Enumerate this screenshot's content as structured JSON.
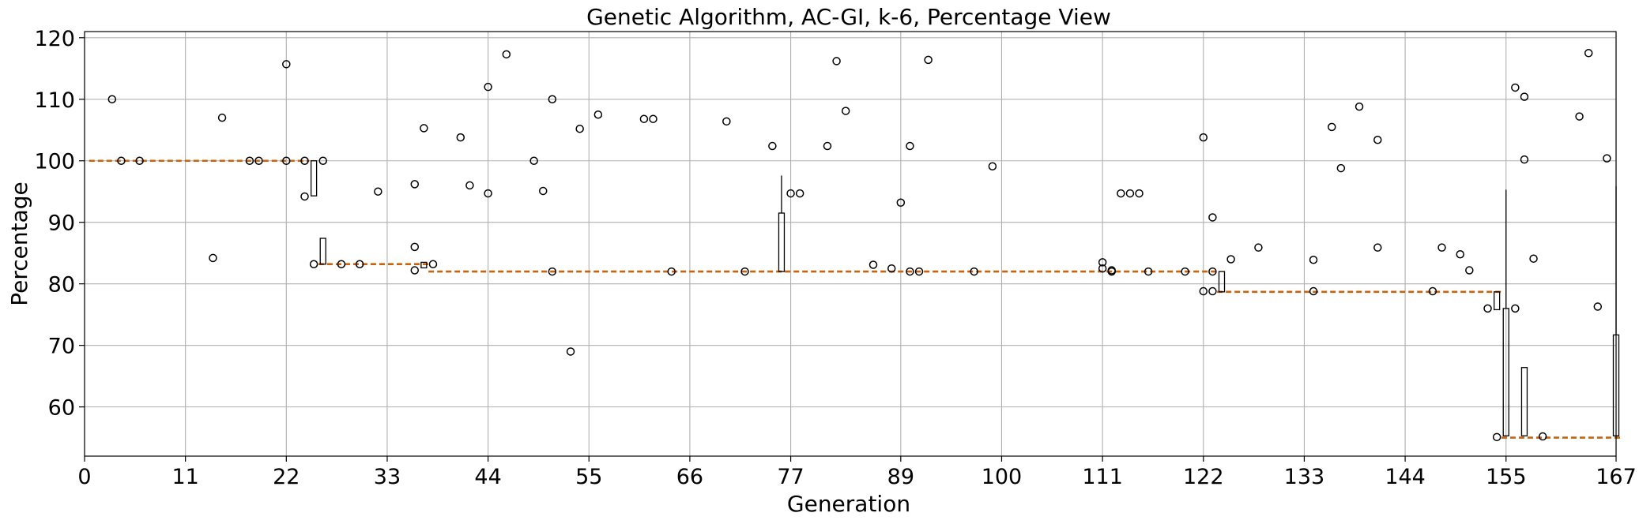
{
  "chart_data": {
    "type": "box",
    "title": "Genetic Algorithm, AC-GI, k-6, Percentage View",
    "xlabel": "Generation",
    "ylabel": "Percentage",
    "xlim": [
      0,
      167
    ],
    "ylim": [
      52,
      121
    ],
    "grid": true,
    "x_ticks": [
      0,
      11,
      22,
      33,
      44,
      55,
      66,
      77,
      89,
      100,
      111,
      122,
      133,
      144,
      155,
      167
    ],
    "y_ticks": [
      60,
      70,
      80,
      90,
      100,
      110,
      120
    ],
    "median_segments": [
      {
        "x0": 0.5,
        "x1": 24.5,
        "y": 100
      },
      {
        "x0": 25.5,
        "x1": 37.5,
        "y": 83.2
      },
      {
        "x0": 37.5,
        "x1": 123.5,
        "y": 82
      },
      {
        "x0": 123.5,
        "x1": 154.5,
        "y": 78.7
      },
      {
        "x0": 154.5,
        "x1": 167.5,
        "y": 55
      }
    ],
    "boxes": [
      {
        "x": 25,
        "q1": 94.3,
        "q3": 100,
        "lo": 94.3,
        "hi": 100
      },
      {
        "x": 26,
        "q1": 83.2,
        "q3": 87.4,
        "lo": 83.2,
        "hi": 87.4
      },
      {
        "x": 37,
        "q1": 82.6,
        "q3": 83.5,
        "lo": 82.6,
        "hi": 83.5
      },
      {
        "x": 76,
        "q1": 82,
        "q3": 91.5,
        "lo": 82,
        "hi": 97.6
      },
      {
        "x": 124,
        "q1": 78.7,
        "q3": 82,
        "lo": 78.7,
        "hi": 82
      },
      {
        "x": 154,
        "q1": 75.8,
        "q3": 78.7,
        "lo": 75.8,
        "hi": 78.7
      },
      {
        "x": 155,
        "q1": 55.3,
        "q3": 76,
        "lo": 55.3,
        "hi": 95.3
      },
      {
        "x": 157,
        "q1": 55.3,
        "q3": 66.4,
        "lo": 55.3,
        "hi": 66.4
      },
      {
        "x": 167,
        "q1": 55.3,
        "q3": 71.7,
        "lo": 55.3,
        "hi": 95.9
      }
    ],
    "outliers": [
      {
        "x": 3,
        "y": 110
      },
      {
        "x": 4,
        "y": 100
      },
      {
        "x": 6,
        "y": 100
      },
      {
        "x": 14,
        "y": 84.2
      },
      {
        "x": 15,
        "y": 107
      },
      {
        "x": 18,
        "y": 100
      },
      {
        "x": 19,
        "y": 100
      },
      {
        "x": 22,
        "y": 115.7
      },
      {
        "x": 22,
        "y": 100
      },
      {
        "x": 24,
        "y": 94.2
      },
      {
        "x": 24,
        "y": 100
      },
      {
        "x": 25,
        "y": 83.2
      },
      {
        "x": 26,
        "y": 100
      },
      {
        "x": 28,
        "y": 83.2
      },
      {
        "x": 30,
        "y": 83.2
      },
      {
        "x": 32,
        "y": 95
      },
      {
        "x": 36,
        "y": 96.2
      },
      {
        "x": 36,
        "y": 86
      },
      {
        "x": 36,
        "y": 82.2
      },
      {
        "x": 37,
        "y": 105.3
      },
      {
        "x": 38,
        "y": 83.2
      },
      {
        "x": 41,
        "y": 103.8
      },
      {
        "x": 42,
        "y": 96
      },
      {
        "x": 44,
        "y": 112
      },
      {
        "x": 44,
        "y": 94.7
      },
      {
        "x": 46,
        "y": 117.3
      },
      {
        "x": 49,
        "y": 100
      },
      {
        "x": 50,
        "y": 95.1
      },
      {
        "x": 51,
        "y": 110
      },
      {
        "x": 51,
        "y": 82
      },
      {
        "x": 53,
        "y": 69
      },
      {
        "x": 54,
        "y": 105.2
      },
      {
        "x": 56,
        "y": 107.5
      },
      {
        "x": 61,
        "y": 106.8
      },
      {
        "x": 62,
        "y": 106.8
      },
      {
        "x": 64,
        "y": 82
      },
      {
        "x": 70,
        "y": 106.4
      },
      {
        "x": 72,
        "y": 82
      },
      {
        "x": 75,
        "y": 102.4
      },
      {
        "x": 77,
        "y": 94.7
      },
      {
        "x": 78,
        "y": 94.7
      },
      {
        "x": 81,
        "y": 102.4
      },
      {
        "x": 82,
        "y": 116.2
      },
      {
        "x": 83,
        "y": 108.1
      },
      {
        "x": 86,
        "y": 83.1
      },
      {
        "x": 88,
        "y": 82.5
      },
      {
        "x": 89,
        "y": 93.2
      },
      {
        "x": 90,
        "y": 102.4
      },
      {
        "x": 90,
        "y": 82
      },
      {
        "x": 91,
        "y": 82
      },
      {
        "x": 92,
        "y": 116.4
      },
      {
        "x": 97,
        "y": 82
      },
      {
        "x": 99,
        "y": 99.1
      },
      {
        "x": 111,
        "y": 83.5
      },
      {
        "x": 111,
        "y": 82.5
      },
      {
        "x": 112,
        "y": 82.2
      },
      {
        "x": 112,
        "y": 82
      },
      {
        "x": 113,
        "y": 94.7
      },
      {
        "x": 114,
        "y": 94.7
      },
      {
        "x": 115,
        "y": 94.7
      },
      {
        "x": 116,
        "y": 82
      },
      {
        "x": 120,
        "y": 82
      },
      {
        "x": 122,
        "y": 103.8
      },
      {
        "x": 122,
        "y": 78.8
      },
      {
        "x": 123,
        "y": 90.8
      },
      {
        "x": 123,
        "y": 82
      },
      {
        "x": 123,
        "y": 78.8
      },
      {
        "x": 125,
        "y": 84
      },
      {
        "x": 128,
        "y": 85.9
      },
      {
        "x": 134,
        "y": 83.9
      },
      {
        "x": 134,
        "y": 78.8
      },
      {
        "x": 136,
        "y": 105.5
      },
      {
        "x": 137,
        "y": 98.8
      },
      {
        "x": 139,
        "y": 108.8
      },
      {
        "x": 141,
        "y": 103.4
      },
      {
        "x": 141,
        "y": 85.9
      },
      {
        "x": 147,
        "y": 78.8
      },
      {
        "x": 148,
        "y": 85.9
      },
      {
        "x": 150,
        "y": 84.8
      },
      {
        "x": 151,
        "y": 82.2
      },
      {
        "x": 153,
        "y": 76
      },
      {
        "x": 154,
        "y": 55.1
      },
      {
        "x": 156,
        "y": 111.9
      },
      {
        "x": 156,
        "y": 76
      },
      {
        "x": 157,
        "y": 110.4
      },
      {
        "x": 157,
        "y": 100.2
      },
      {
        "x": 158,
        "y": 84.1
      },
      {
        "x": 159,
        "y": 55.2
      },
      {
        "x": 163,
        "y": 107.2
      },
      {
        "x": 164,
        "y": 117.5
      },
      {
        "x": 165,
        "y": 76.3
      },
      {
        "x": 166,
        "y": 100.4
      }
    ]
  }
}
